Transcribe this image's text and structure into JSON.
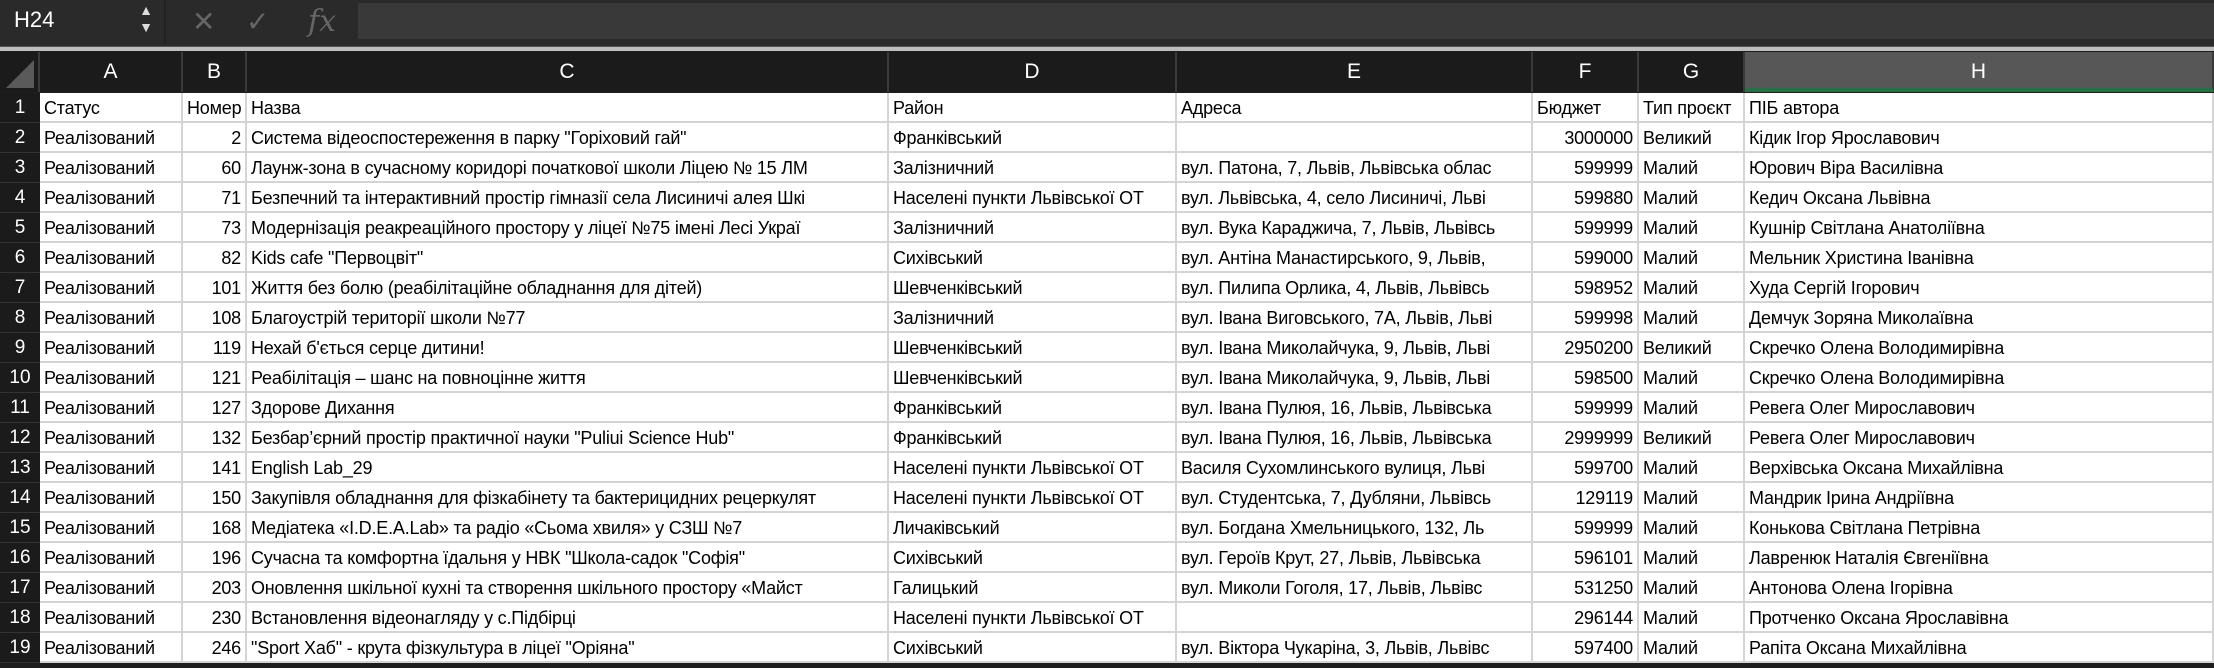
{
  "formula_bar": {
    "name_box": "H24",
    "cancel_icon": "x-icon",
    "enter_icon": "check-icon",
    "fx_label": "fx",
    "formula": ""
  },
  "columns": [
    "A",
    "B",
    "C",
    "D",
    "E",
    "F",
    "G",
    "H"
  ],
  "selected_column": "H",
  "accent_color": "#217346",
  "rows": [
    [
      "Статус",
      "Номер",
      "Назва",
      "Район",
      "Адреса",
      "Бюджет",
      "Тип проєкт",
      "ПІБ автора"
    ],
    [
      "Реалізований",
      "2",
      "Система відеоспостереження в парку \"Горіховий гай\"",
      "Франківський",
      "",
      "3000000",
      "Великий",
      "Кідик Ігор Ярославович"
    ],
    [
      "Реалізований",
      "60",
      "Лаунж-зона в сучасному коридорі початкової школи Ліцею № 15 ЛМ",
      "Залізничний",
      "вул. Патона, 7, Львів, Львівська облас",
      "599999",
      "Малий",
      "Юрович Віра Василівна"
    ],
    [
      "Реалізований",
      "71",
      "Безпечний та інтерактивний простір гімназії села Лисиничі алея Шкі",
      "Населені пункти Львівської ОТ",
      "вул. Львівська, 4, село Лисиничі, Льві",
      "599880",
      "Малий",
      "Кедич Оксана Львівна"
    ],
    [
      "Реалізований",
      "73",
      "Модернізація реакреаційного простору у ліцеї №75 імені Лесі Украї",
      "Залізничний",
      "вул. Вука Караджича, 7, Львів, Львівсь",
      "599999",
      "Малий",
      "Кушнір Світлана Анатоліївна"
    ],
    [
      "Реалізований",
      "82",
      "Kids cafe \"Первоцвіт\"",
      "Сихівський",
      "вул. Антіна Манастирського, 9, Львів,",
      "599000",
      "Малий",
      "Мельник Христина Іванівна"
    ],
    [
      "Реалізований",
      "101",
      "Життя без болю (реабілітаційне обладнання для дітей)",
      "Шевченківський",
      "вул. Пилипа Орлика, 4, Львів, Львівсь",
      "598952",
      "Малий",
      "Худа Сергій Ігорович"
    ],
    [
      "Реалізований",
      "108",
      "Благоустрій території школи №77",
      "Залізничний",
      "вул. Івана Виговського, 7А, Львів, Льві",
      "599998",
      "Малий",
      "Демчук Зоряна Миколаївна"
    ],
    [
      "Реалізований",
      "119",
      "Нехай б'ється серце дитини!",
      "Шевченківський",
      "вул. Івана Миколайчука, 9, Львів, Льві",
      "2950200",
      "Великий",
      "Скречко Олена Володимирівна"
    ],
    [
      "Реалізований",
      "121",
      "Реабілітація – шанс на повноцінне життя",
      "Шевченківський",
      "вул. Івана Миколайчука, 9, Львів, Льві",
      "598500",
      "Малий",
      "Скречко Олена Володимирівна"
    ],
    [
      "Реалізований",
      "127",
      "Здорове Дихання",
      "Франківський",
      "вул. Івана Пулюя, 16, Львів, Львівська",
      "599999",
      "Малий",
      "Ревега Олег Мирославович"
    ],
    [
      "Реалізований",
      "132",
      "Безбар’єрний простір практичної науки  \"Puliui Science Hub\"",
      "Франківський",
      "вул. Івана Пулюя, 16, Львів, Львівська",
      "2999999",
      "Великий",
      "Ревега Олег Мирославович"
    ],
    [
      "Реалізований",
      "141",
      "English Lab_29",
      "Населені пункти Львівської ОТ",
      "Василя Сухомлинського вулиця, Льві",
      "599700",
      "Малий",
      "Верхівська Оксана Михайлівна"
    ],
    [
      "Реалізований",
      "150",
      "Закупівля обладнання для фізкабінету та бактерицидних рецеркулят",
      "Населені пункти Львівської ОТ",
      "вул. Студентська, 7, Дубляни, Львівсь",
      "129119",
      "Малий",
      "Мандрик Ірина Андріївна"
    ],
    [
      "Реалізований",
      "168",
      "Медіатека «I.D.E.A.Lab» та радіо «Сьома хвиля» у СЗШ №7",
      "Личаківський",
      "вул. Богдана Хмельницького, 132, Ль",
      "599999",
      "Малий",
      "Конькова Світлана Петрівна"
    ],
    [
      "Реалізований",
      "196",
      "Сучасна та комфортна їдальня у НВК \"Школа-садок \"Софія\"",
      "Сихівський",
      "вул. Героїв Крут, 27, Львів, Львівська",
      "596101",
      "Малий",
      "Лавренюк Наталія Євгеніївна"
    ],
    [
      "Реалізований",
      "203",
      "Оновлення шкільної кухні та створення шкільного простору «Майст",
      "Галицький",
      "вул. Миколи Гоголя, 17, Львів, Львівс",
      "531250",
      "Малий",
      "Антонова Олена Ігорівна"
    ],
    [
      "Реалізований",
      "230",
      "Встановлення відеонагляду у с.Підбірці",
      "Населені пункти Львівської ОТ",
      "",
      "296144",
      "Малий",
      "Протченко Оксана Ярославівна"
    ],
    [
      "Реалізований",
      "246",
      "\"Sport Хаб\" - крута фізкультура в ліцеї \"Оріяна\"",
      "Сихівський",
      "вул. Віктора Чукаріна, 3, Львів, Львівс",
      "597400",
      "Малий",
      "Рапіта Оксана Михайлівна"
    ]
  ]
}
